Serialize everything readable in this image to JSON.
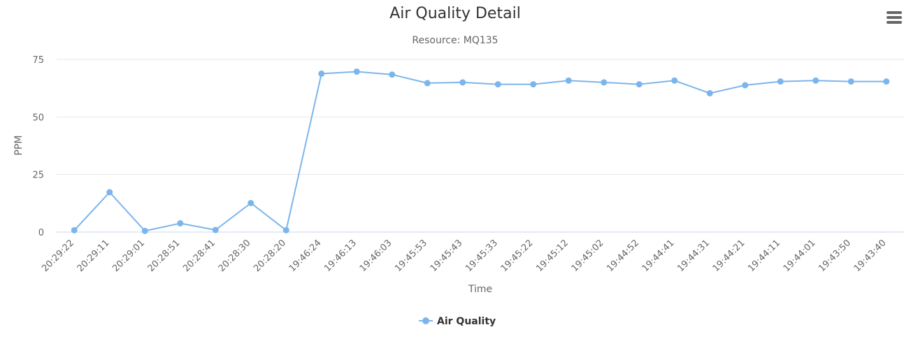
{
  "chart_data": {
    "type": "line",
    "title": "Air Quality Detail",
    "subtitle": "Resource: MQ135",
    "xlabel": "Time",
    "ylabel": "PPM",
    "ylim": [
      0,
      75
    ],
    "yticks": [
      0,
      25,
      50,
      75
    ],
    "grid": true,
    "legend": "bottom-center",
    "categories": [
      "20:29:22",
      "20:29:11",
      "20:29:01",
      "20:28:51",
      "20:28:41",
      "20:28:30",
      "20:28:20",
      "19:46:24",
      "19:46:13",
      "19:46:03",
      "19:45:53",
      "19:45:43",
      "19:45:33",
      "19:45:22",
      "19:45:12",
      "19:45:02",
      "19:44:52",
      "19:44:41",
      "19:44:31",
      "19:44:21",
      "19:44:11",
      "19:44:01",
      "19:43:50",
      "19:43:40"
    ],
    "series": [
      {
        "name": "Air Quality",
        "color": "#7cb5ec",
        "values": [
          0.8,
          17.3,
          0.5,
          3.8,
          0.9,
          12.6,
          0.8,
          68.8,
          69.7,
          68.4,
          64.7,
          65.0,
          64.2,
          64.2,
          65.8,
          65.0,
          64.2,
          65.8,
          60.3,
          63.8,
          65.4,
          65.8,
          65.4,
          65.4
        ]
      }
    ]
  }
}
